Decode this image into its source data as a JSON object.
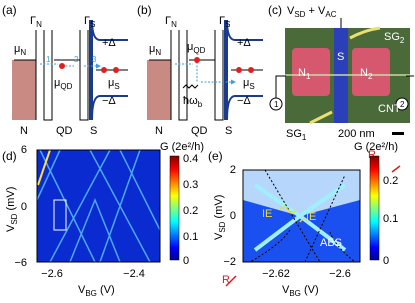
{
  "panel_a": {
    "label": "(a)",
    "gamma_n": {
      "main": "Γ",
      "sub": "N"
    },
    "gamma_s": {
      "main": "Γ",
      "sub": "S"
    },
    "plus_delta": "+Δ",
    "minus_delta": "−Δ",
    "mu_n": {
      "main": "μ",
      "sub": "N"
    },
    "mu_qd": {
      "main": "μ",
      "sub": "QD"
    },
    "mu_s": {
      "main": "μ",
      "sub": "S"
    },
    "steps": [
      "1",
      "2",
      "3"
    ],
    "regions": [
      "N",
      "QD",
      "S"
    ]
  },
  "panel_b": {
    "label": "(b)",
    "gamma_n": {
      "main": "Γ",
      "sub": "N"
    },
    "gamma_s": {
      "main": "Γ",
      "sub": "S"
    },
    "plus_delta": "+Δ",
    "minus_delta": "−Δ",
    "mu_n": {
      "main": "μ",
      "sub": "N"
    },
    "mu_qd": {
      "main": "μ",
      "sub": "QD"
    },
    "mu_s": {
      "main": "μ",
      "sub": "S"
    },
    "photon": {
      "main": "ħω",
      "sub": "b"
    },
    "regions": [
      "N",
      "QD",
      "S"
    ]
  },
  "panel_c": {
    "label": "(c)",
    "bias": {
      "v1": "V",
      "s1": "SD",
      "plus": " + ",
      "v2": "V",
      "s2": "AC"
    },
    "sg2": {
      "main": "SG",
      "sub": "2"
    },
    "sg1": {
      "main": "SG",
      "sub": "1"
    },
    "n1": {
      "main": "N",
      "sub": "1"
    },
    "n2": {
      "main": "N",
      "sub": "2"
    },
    "s": "S",
    "cnt": "CNT",
    "scale": "200 nm",
    "meters": [
      "1",
      "2"
    ]
  },
  "panel_d": {
    "label": "(d)",
    "colorbar_title": "G (2e²/h)",
    "colorbar_ticks": [
      "0.4",
      "0.3",
      "0.2",
      "0.1",
      "0"
    ],
    "y_label": {
      "v": "V",
      "sub": "SD",
      "unit": " (mV)"
    },
    "y_ticks": [
      "6",
      "0",
      "−6"
    ],
    "x_label": {
      "v": "V",
      "sub": "BG",
      "unit": " (V)"
    },
    "x_ticks": [
      "−2.6",
      "−2.4"
    ]
  },
  "panel_e": {
    "label": "(e)",
    "colorbar_title": "G (2e²/h)",
    "colorbar_ticks": [
      "0.2",
      "0.1",
      "0"
    ],
    "y_label": {
      "v": "V",
      "sub": "SD",
      "unit": " (mV)"
    },
    "y_ticks": [
      "2",
      "0",
      "−2"
    ],
    "x_label": {
      "v": "V",
      "sub": "BG",
      "unit": " (V)"
    },
    "x_ticks": [
      "−2.62",
      "−2.6"
    ],
    "annotations": [
      "IE",
      "IE",
      "ABS",
      "R",
      "R"
    ]
  }
}
